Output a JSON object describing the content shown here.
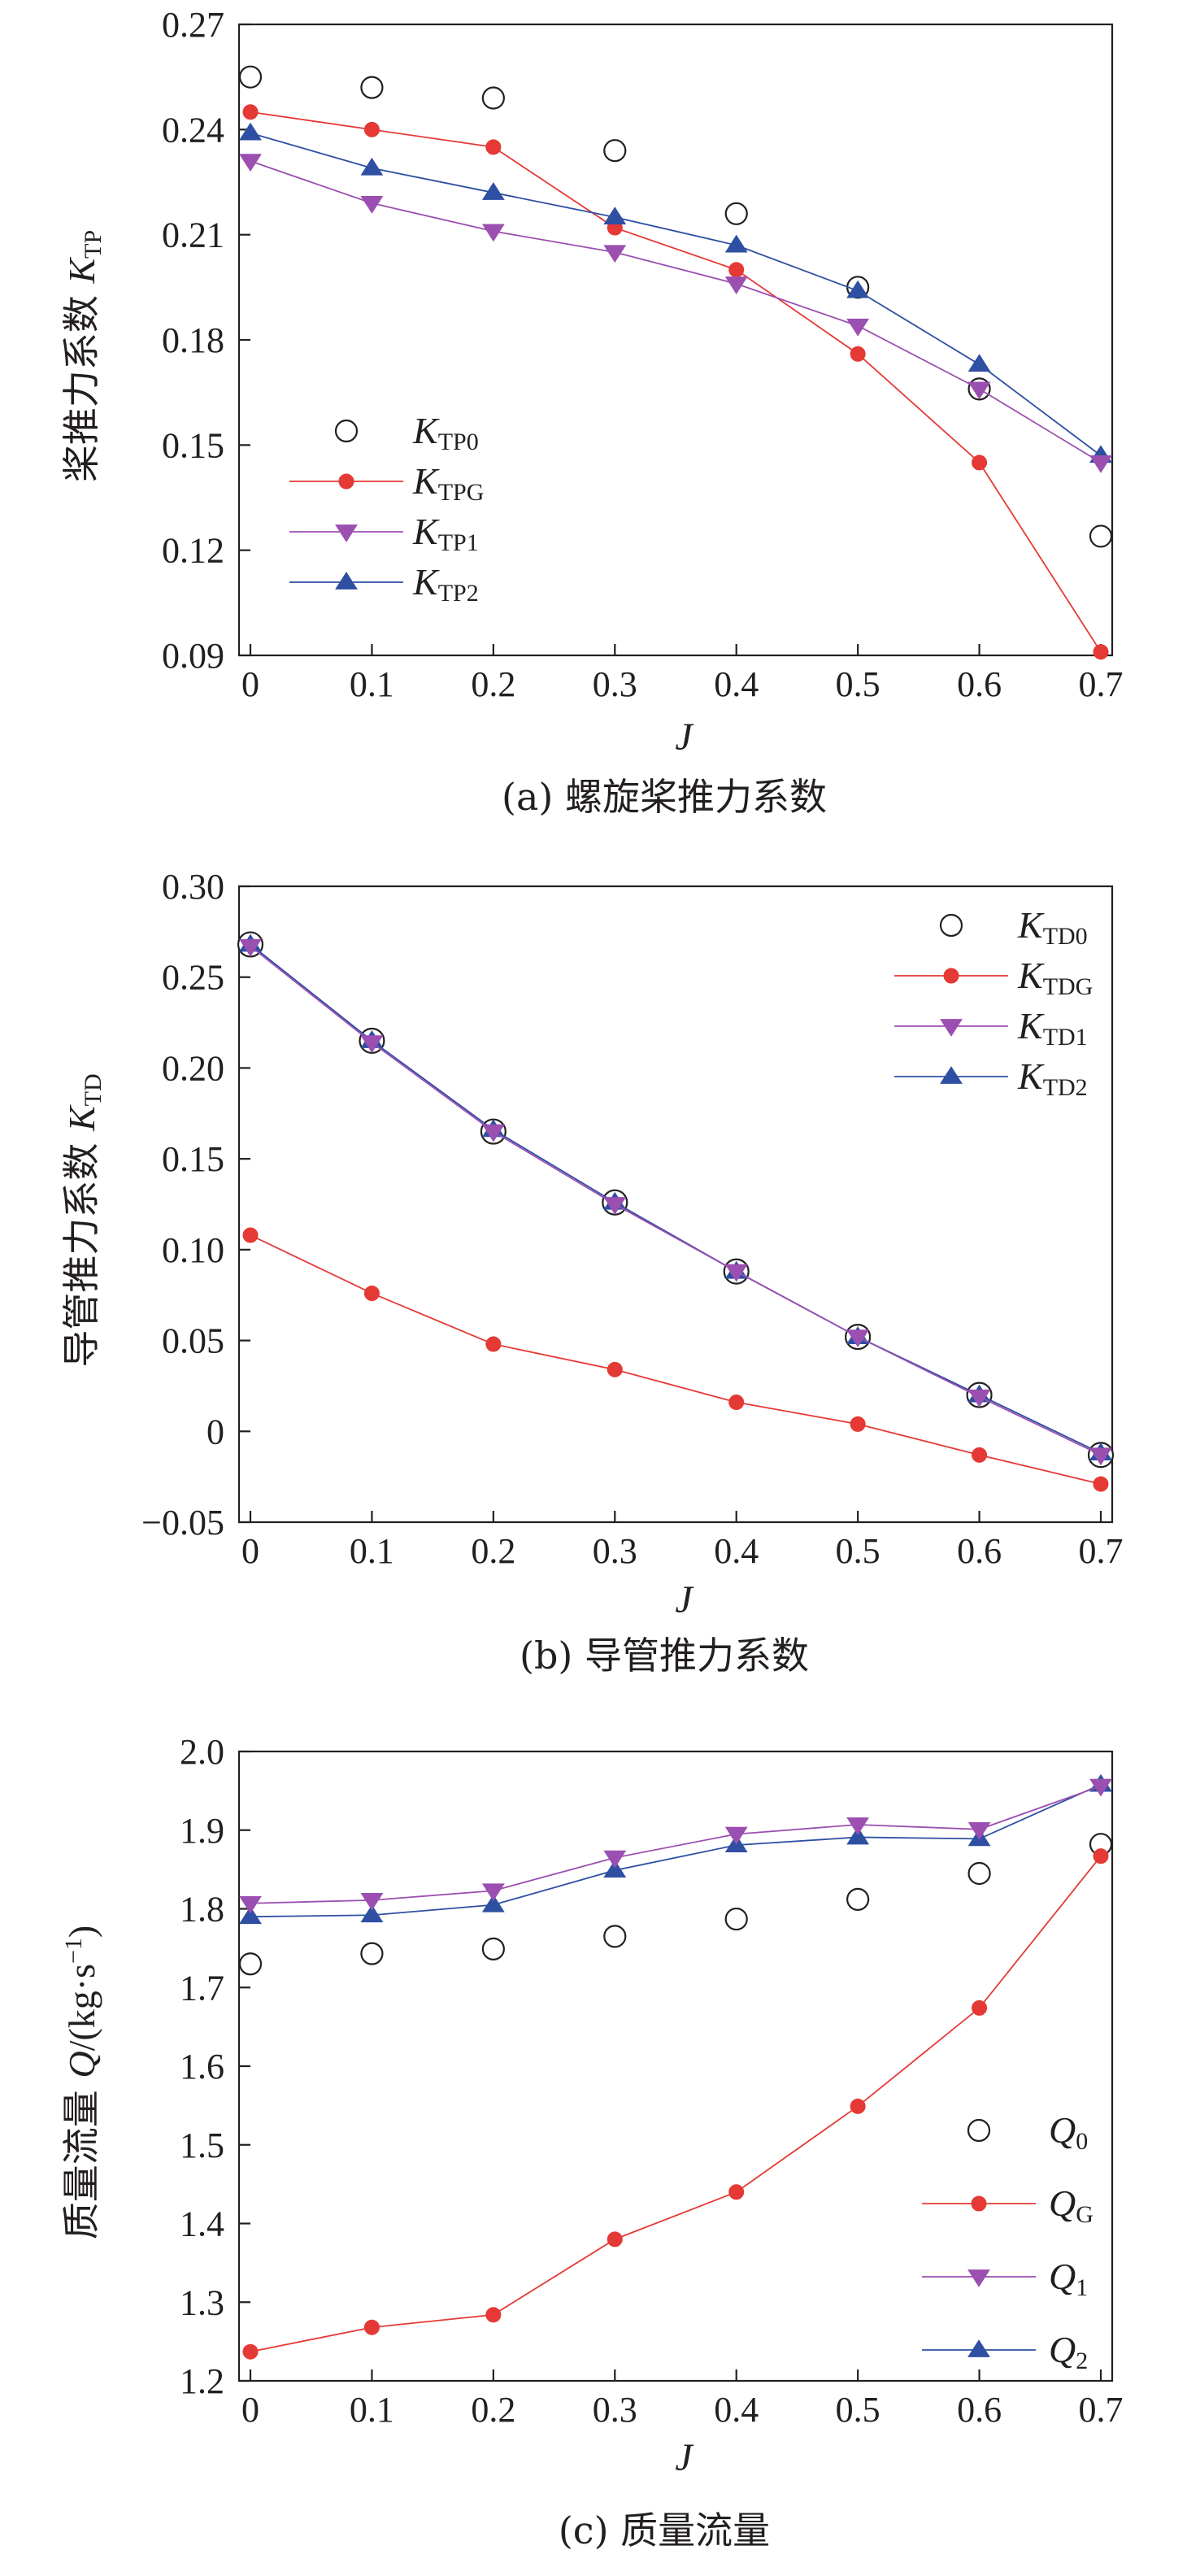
{
  "chart_data": [
    {
      "type": "line",
      "caption": "(a) 螺旋桨推力系数",
      "xlabel": "J",
      "ylabel": {
        "text": "桨推力系数 ",
        "symbol": "K",
        "sub": "TP"
      },
      "xlim": [
        0,
        0.7
      ],
      "ylim": [
        0.09,
        0.27
      ],
      "xticks": [
        "0",
        "0.1",
        "0.2",
        "0.3",
        "0.4",
        "0.5",
        "0.6",
        "0.7"
      ],
      "yticks": [
        "0.09",
        "0.12",
        "0.15",
        "0.18",
        "0.21",
        "0.24",
        "0.27"
      ],
      "legend_position": "bottom-left",
      "grid": false,
      "x": [
        0,
        0.1,
        0.2,
        0.3,
        0.4,
        0.5,
        0.6,
        0.7
      ],
      "series": [
        {
          "symbol": "K",
          "sub": "TP0",
          "marker": "open-circle",
          "line": false,
          "color": "#231f20",
          "values": [
            0.255,
            0.252,
            0.249,
            0.234,
            0.216,
            0.195,
            0.166,
            0.124
          ]
        },
        {
          "symbol": "K",
          "sub": "TPG",
          "marker": "filled-circle",
          "line": true,
          "color": "#e53935",
          "values": [
            0.245,
            0.24,
            0.235,
            0.212,
            0.2,
            0.176,
            0.145,
            0.091
          ]
        },
        {
          "symbol": "K",
          "sub": "TP1",
          "marker": "down-triangle",
          "line": true,
          "color": "#9b4fb0",
          "values": [
            0.231,
            0.219,
            0.211,
            0.205,
            0.196,
            0.184,
            0.166,
            0.145
          ]
        },
        {
          "symbol": "K",
          "sub": "TP2",
          "marker": "up-triangle",
          "line": true,
          "color": "#2e4fa2",
          "values": [
            0.239,
            0.229,
            0.222,
            0.215,
            0.207,
            0.194,
            0.173,
            0.147
          ]
        }
      ]
    },
    {
      "type": "line",
      "caption": "(b) 导管推力系数",
      "xlabel": "J",
      "ylabel": {
        "text": "导管推力系数 ",
        "symbol": "K",
        "sub": "TD"
      },
      "xlim": [
        0,
        0.7
      ],
      "ylim": [
        -0.05,
        0.3
      ],
      "xticks": [
        "0",
        "0.1",
        "0.2",
        "0.3",
        "0.4",
        "0.5",
        "0.6",
        "0.7"
      ],
      "yticks": [
        "−0.05",
        "0",
        "0.05",
        "0.10",
        "0.15",
        "0.20",
        "0.25",
        "0.30"
      ],
      "legend_position": "top-right",
      "grid": false,
      "x": [
        0,
        0.1,
        0.2,
        0.3,
        0.4,
        0.5,
        0.6,
        0.7
      ],
      "series": [
        {
          "symbol": "K",
          "sub": "TD0",
          "marker": "open-circle",
          "line": false,
          "color": "#231f20",
          "values": [
            0.268,
            0.215,
            0.165,
            0.126,
            0.088,
            0.052,
            0.02,
            -0.013
          ]
        },
        {
          "symbol": "K",
          "sub": "TDG",
          "marker": "filled-circle",
          "line": true,
          "color": "#e53935",
          "values": [
            0.108,
            0.076,
            0.048,
            0.034,
            0.016,
            0.004,
            -0.013,
            -0.029
          ]
        },
        {
          "symbol": "K",
          "sub": "TD1",
          "marker": "down-triangle",
          "line": true,
          "color": "#9b4fb0",
          "values": [
            0.267,
            0.214,
            0.165,
            0.125,
            0.088,
            0.052,
            0.019,
            -0.013
          ]
        },
        {
          "symbol": "K",
          "sub": "TD2",
          "marker": "up-triangle",
          "line": true,
          "color": "#2e4fa2",
          "values": [
            0.268,
            0.215,
            0.166,
            0.126,
            0.088,
            0.052,
            0.02,
            -0.012
          ]
        }
      ]
    },
    {
      "type": "line",
      "caption": "(c) 质量流量",
      "xlabel": "J",
      "ylabel": {
        "text": "质量流量 ",
        "symbol": "Q",
        "sub": "",
        "unit": "/(kg·s",
        "exp": "−1",
        "close": ")"
      },
      "xlim": [
        0,
        0.7
      ],
      "ylim": [
        1.2,
        2.0
      ],
      "xticks": [
        "0",
        "0.1",
        "0.2",
        "0.3",
        "0.4",
        "0.5",
        "0.6",
        "0.7"
      ],
      "yticks": [
        "1.2",
        "1.3",
        "1.4",
        "1.5",
        "1.6",
        "1.7",
        "1.8",
        "1.9",
        "2.0"
      ],
      "legend_position": "bottom-right",
      "grid": false,
      "x": [
        0,
        0.1,
        0.2,
        0.3,
        0.4,
        0.5,
        0.6,
        0.7
      ],
      "series": [
        {
          "symbol": "Q",
          "sub": "0",
          "marker": "open-circle",
          "line": false,
          "color": "#231f20",
          "values": [
            1.73,
            1.743,
            1.749,
            1.765,
            1.787,
            1.812,
            1.845,
            1.882
          ]
        },
        {
          "symbol": "Q",
          "sub": "G",
          "marker": "filled-circle",
          "line": true,
          "color": "#e53935",
          "values": [
            1.237,
            1.268,
            1.284,
            1.38,
            1.44,
            1.549,
            1.674,
            1.867
          ]
        },
        {
          "symbol": "Q",
          "sub": "1",
          "marker": "down-triangle",
          "line": true,
          "color": "#9b4fb0",
          "values": [
            1.807,
            1.811,
            1.823,
            1.865,
            1.895,
            1.907,
            1.901,
            1.956
          ]
        },
        {
          "symbol": "Q",
          "sub": "2",
          "marker": "up-triangle",
          "line": true,
          "color": "#2e4fa2",
          "values": [
            1.79,
            1.792,
            1.805,
            1.849,
            1.881,
            1.891,
            1.889,
            1.958
          ]
        }
      ]
    }
  ]
}
